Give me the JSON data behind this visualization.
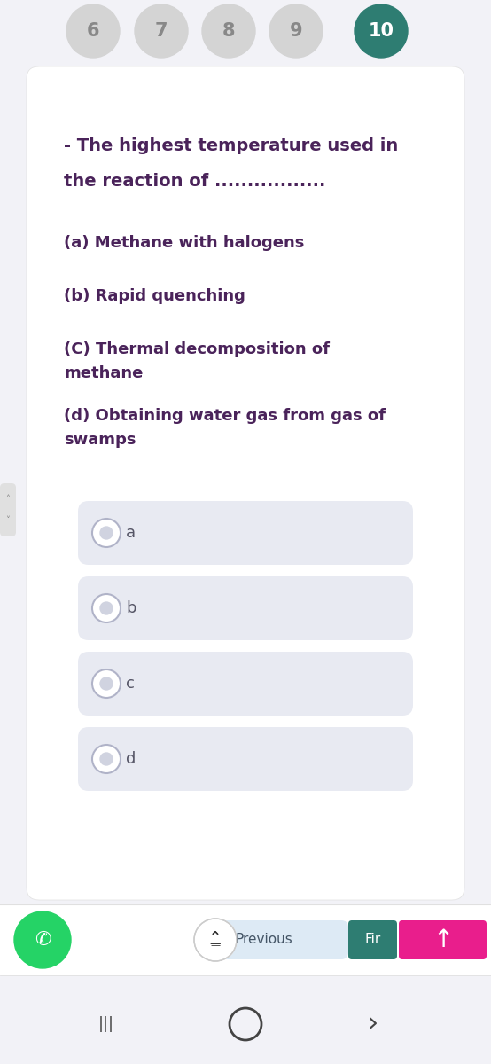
{
  "bg_color": "#f2f2f7",
  "main_bg": "#ffffff",
  "question_text_line1": "- The highest temperature used in",
  "question_text_line2": "the reaction of .................",
  "question_color": "#4a235a",
  "options_text": [
    "(a) Methane with halogens",
    "(b) Rapid quenching",
    "(C) Thermal decomposition of\nmethane",
    "(d) Obtaining water gas from gas of\nswamps"
  ],
  "answer_labels": [
    "a",
    "b",
    "c",
    "d"
  ],
  "nav_numbers": [
    "6",
    "7",
    "8",
    "9",
    "10"
  ],
  "nav_active": 4,
  "nav_inactive_color": "#d4d4d4",
  "nav_active_color": "#2e7d72",
  "nav_text_inactive": "#888888",
  "nav_text_active": "#ffffff",
  "answer_box_color": "#e8eaf2",
  "answer_box_border": "#d0d3e0",
  "circle_outer_color": "#ffffff",
  "circle_border_color": "#b0b3c8",
  "circle_inner_color": "#d0d3e0",
  "whatsapp_color": "#25d366",
  "prev_button_bg": "#ddeaf5",
  "fir_button_color": "#2e7d72",
  "fir_arrow_color": "#e91e8c",
  "side_tab_color": "#e0e0e0",
  "side_arrow_color": "#888888",
  "bottom_bar_bg": "#ffffff",
  "android_bar_bg": "#f2f2f7",
  "font_size_nav": 13,
  "font_size_question": 13,
  "font_size_options": 12,
  "font_size_label": 12
}
